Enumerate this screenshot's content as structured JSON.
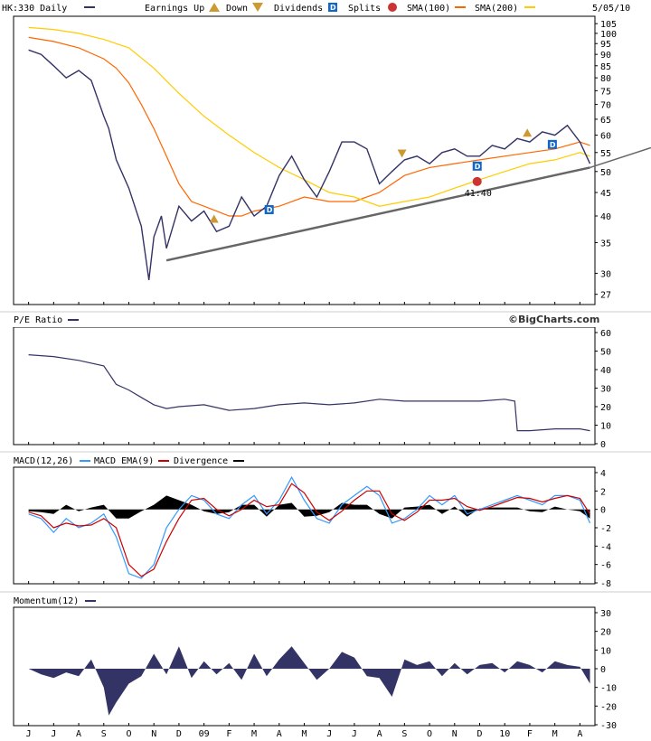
{
  "header": {
    "ticker": "HK:330 Daily",
    "earnings_up": "Earnings Up",
    "down": "Down",
    "dividends": "Dividends",
    "splits": "Splits",
    "sma100": "SMA(100)",
    "sma200": "SMA(200)",
    "date": "5/05/10"
  },
  "panels": {
    "pe": "P/E Ratio",
    "brand": "©BigCharts.com",
    "macd": "MACD(12,26)",
    "macd_ema": "MACD EMA(9)",
    "divergence": "Divergence",
    "momentum": "Momentum(12)"
  },
  "colors": {
    "price": "#333366",
    "sma100": "#ff6600",
    "sma200": "#ffcc00",
    "macd": "#3399ff",
    "macd_ema": "#cc0000",
    "divergence": "#000000",
    "trendline": "#666666",
    "dividend_marker": "#1166cc",
    "earnings_marker": "#cc9933",
    "split_marker": "#cc3333"
  },
  "chart_data": [
    {
      "type": "line",
      "title": "HK:330 Daily",
      "y_scale": "log",
      "y_ticks": [
        27,
        30,
        35,
        40,
        45,
        50,
        55,
        60,
        65,
        70,
        75,
        80,
        85,
        90,
        95,
        100,
        105
      ],
      "x_ticks": [
        "J",
        "J",
        "A",
        "S",
        "O",
        "N",
        "D",
        "09",
        "F",
        "M",
        "A",
        "M",
        "J",
        "J",
        "A",
        "S",
        "O",
        "N",
        "D",
        "10",
        "F",
        "M",
        "A"
      ],
      "series": [
        {
          "name": "SMA(100)",
          "x": [
            0,
            1,
            2,
            3,
            3.5,
            4,
            4.5,
            5,
            5.5,
            6,
            6.5,
            7,
            7.5,
            8,
            8.5,
            9,
            10,
            11,
            12,
            13,
            14,
            15,
            16,
            17,
            18,
            19,
            20,
            21,
            22,
            22.4
          ],
          "values": [
            98,
            96,
            93,
            88,
            84,
            78,
            70,
            62,
            54,
            47,
            43,
            42,
            41,
            40,
            40,
            41,
            42,
            44,
            43,
            43,
            45,
            49,
            51,
            52,
            53,
            54,
            55,
            56,
            58,
            57
          ]
        },
        {
          "name": "SMA(200)",
          "x": [
            0,
            1,
            2,
            3,
            4,
            5,
            6,
            7,
            8,
            9,
            10,
            11,
            12,
            13,
            14,
            15,
            16,
            17,
            18,
            19,
            20,
            21,
            22,
            22.4
          ],
          "values": [
            103,
            102,
            100,
            97,
            93,
            84,
            74,
            66,
            60,
            55,
            51,
            48,
            45,
            44,
            42,
            43,
            44,
            46,
            48,
            50,
            52,
            53,
            55,
            54
          ]
        },
        {
          "name": "Price",
          "x": [
            0,
            0.5,
            1,
            1.5,
            2,
            2.5,
            3,
            3.2,
            3.5,
            4,
            4.5,
            4.8,
            5,
            5.3,
            5.5,
            6,
            6.5,
            7,
            7.5,
            8,
            8.5,
            9,
            9.5,
            10,
            10.5,
            11,
            11.5,
            12,
            12.5,
            13,
            13.5,
            14,
            14.5,
            15,
            15.5,
            16,
            16.5,
            17,
            17.5,
            18,
            18.5,
            19,
            19.5,
            20,
            20.5,
            21,
            21.5,
            22,
            22.4
          ],
          "values": [
            92,
            90,
            85,
            80,
            83,
            79,
            66,
            62,
            53,
            46,
            38,
            29,
            36,
            40,
            34,
            42,
            39,
            41,
            37,
            38,
            44,
            40,
            42,
            49,
            54,
            48,
            44,
            50,
            58,
            58,
            56,
            47,
            50,
            53,
            54,
            52,
            55,
            56,
            54,
            54,
            57,
            56,
            59,
            58,
            61,
            60,
            63,
            58,
            52
          ]
        }
      ],
      "events": [
        {
          "type": "Earnings Up",
          "x": 7.4
        },
        {
          "type": "Dividends",
          "x": 9.6
        },
        {
          "type": "Down",
          "x": 14.9
        },
        {
          "type": "Dividends",
          "x": 17.9
        },
        {
          "type": "Splits",
          "x": 17.9,
          "label": "41:40"
        },
        {
          "type": "Earnings Up",
          "x": 19.9
        },
        {
          "type": "Dividends",
          "x": 20.9
        }
      ],
      "trendline": {
        "x": [
          5.5,
          22.4
        ],
        "values": [
          32,
          51
        ]
      }
    },
    {
      "type": "line",
      "title": "P/E Ratio",
      "y_ticks": [
        0,
        10,
        20,
        30,
        40,
        50,
        60
      ],
      "series": [
        {
          "name": "P/E Ratio",
          "x": [
            0,
            1,
            2,
            3,
            3.5,
            4,
            4.5,
            5,
            5.5,
            6,
            7,
            8,
            9,
            10,
            11,
            12,
            13,
            14,
            15,
            16,
            17,
            18,
            19,
            19.4,
            19.5,
            20,
            21,
            22,
            22.4
          ],
          "values": [
            48,
            47,
            45,
            42,
            32,
            29,
            25,
            21,
            19,
            20,
            21,
            18,
            19,
            21,
            22,
            21,
            22,
            24,
            23,
            23,
            23,
            23,
            24,
            23,
            7,
            7,
            8,
            8,
            7
          ]
        }
      ]
    },
    {
      "type": "line",
      "title": "MACD(12,26)",
      "y_ticks": [
        -8,
        -6,
        -4,
        -2,
        0,
        2,
        4
      ],
      "series": [
        {
          "name": "MACD(12,26)",
          "x": [
            0,
            0.5,
            1,
            1.5,
            2,
            2.5,
            3,
            3.5,
            4,
            4.5,
            5,
            5.5,
            6,
            6.5,
            7,
            7.5,
            8,
            8.5,
            9,
            9.5,
            10,
            10.5,
            11,
            11.5,
            12,
            12.5,
            13,
            13.5,
            14,
            14.5,
            15,
            15.5,
            16,
            16.5,
            17,
            17.5,
            18,
            18.5,
            19,
            19.5,
            20,
            20.5,
            21,
            21.5,
            22,
            22.4
          ],
          "values": [
            -0.5,
            -1,
            -2.5,
            -1,
            -2,
            -1.5,
            -0.5,
            -3,
            -7,
            -7.5,
            -6,
            -2,
            0,
            1.5,
            1,
            -0.5,
            -1,
            0.5,
            1.5,
            -0.5,
            1,
            3.5,
            1,
            -1,
            -1.5,
            0.5,
            1.5,
            2.5,
            1.5,
            -1.5,
            -1,
            0,
            1.5,
            0.5,
            1.5,
            -0.5,
            0,
            0.5,
            1,
            1.5,
            1,
            0.5,
            1.5,
            1.5,
            1,
            -1.5
          ]
        },
        {
          "name": "MACD EMA(9)",
          "x": [
            0,
            0.5,
            1,
            1.5,
            2,
            2.5,
            3,
            3.5,
            4,
            4.5,
            5,
            5.5,
            6,
            6.5,
            7,
            7.5,
            8,
            8.5,
            9,
            9.5,
            10,
            10.5,
            11,
            11.5,
            12,
            12.5,
            13,
            13.5,
            14,
            14.5,
            15,
            15.5,
            16,
            16.5,
            17,
            17.5,
            18,
            18.5,
            19,
            19.5,
            20,
            20.5,
            21,
            21.5,
            22,
            22.4
          ],
          "values": [
            -0.3,
            -0.7,
            -2,
            -1.5,
            -1.8,
            -1.7,
            -1,
            -2,
            -6,
            -7.3,
            -6.5,
            -3.5,
            -1,
            1,
            1.2,
            0,
            -0.7,
            0,
            1,
            0.3,
            0.5,
            2.8,
            1.8,
            -0.3,
            -1.2,
            -0.2,
            1,
            2,
            2,
            -0.5,
            -1.2,
            -0.3,
            1,
            1,
            1.2,
            0.3,
            -0.1,
            0.3,
            0.8,
            1.3,
            1.2,
            0.8,
            1.2,
            1.5,
            1.2,
            -0.5
          ]
        }
      ]
    },
    {
      "type": "area",
      "title": "Momentum(12)",
      "y_ticks": [
        -30,
        -20,
        -10,
        0,
        10,
        20,
        30
      ],
      "series": [
        {
          "name": "Momentum(12)",
          "x": [
            0,
            0.5,
            1,
            1.5,
            2,
            2.5,
            3,
            3.2,
            3.5,
            4,
            4.5,
            5,
            5.5,
            6,
            6.5,
            7,
            7.5,
            8,
            8.5,
            9,
            9.5,
            10,
            10.5,
            11,
            11.5,
            12,
            12.5,
            13,
            13.5,
            14,
            14.5,
            15,
            15.5,
            16,
            16.5,
            17,
            17.5,
            18,
            18.5,
            19,
            19.5,
            20,
            20.5,
            21,
            21.5,
            22,
            22.4
          ],
          "values": [
            0,
            -3,
            -5,
            -2,
            -4,
            5,
            -10,
            -25,
            -18,
            -8,
            -4,
            8,
            -3,
            12,
            -5,
            4,
            -3,
            3,
            -6,
            8,
            -4,
            5,
            12,
            3,
            -6,
            0,
            9,
            6,
            -4,
            -5,
            -15,
            5,
            2,
            4,
            -4,
            3,
            -3,
            2,
            3,
            -2,
            4,
            2,
            -2,
            4,
            2,
            1,
            -8
          ]
        }
      ]
    }
  ]
}
